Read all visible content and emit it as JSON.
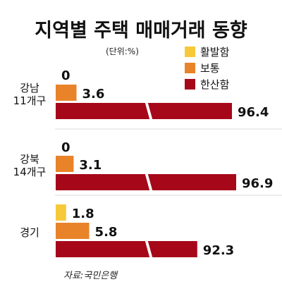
{
  "chart_data": {
    "type": "bar",
    "orientation": "horizontal",
    "title": "지역별 주택 매매거래 동향",
    "unit": "(단위:%)",
    "source": "자료:국민은행",
    "legend_position": "top-right",
    "categories": [
      {
        "line1": "강남",
        "line2": "11개구"
      },
      {
        "line1": "강북",
        "line2": "14개구"
      },
      {
        "line1": "경기",
        "line2": ""
      }
    ],
    "series": [
      {
        "name": "활발함",
        "color": "#f5c93a",
        "values": [
          0,
          0,
          1.8
        ]
      },
      {
        "name": "보통",
        "color": "#e9832a",
        "values": [
          3.6,
          3.1,
          5.8
        ]
      },
      {
        "name": "한산함",
        "color": "#a6081a",
        "values": [
          96.4,
          96.9,
          92.3
        ]
      }
    ],
    "axis_break": true,
    "grid": false
  }
}
